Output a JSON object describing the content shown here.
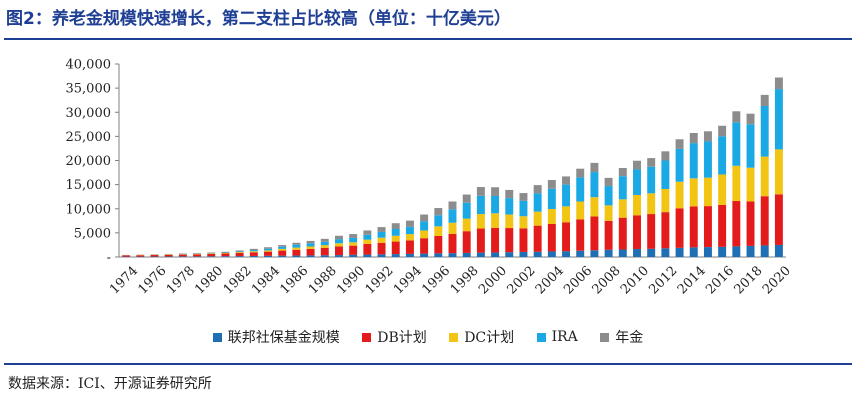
{
  "title": "图2：养老金规模快速增长，第二支柱占比较高（单位：十亿美元）",
  "source": "数据来源：ICI、开源证券研究所",
  "legend": [
    {
      "name": "联邦社保基金规模",
      "color": "#1f6fb4"
    },
    {
      "name": "DB计划",
      "color": "#e41b1b"
    },
    {
      "name": "DC计划",
      "color": "#f2c514"
    },
    {
      "name": "IRA",
      "color": "#1ba9e6"
    },
    {
      "name": "年金",
      "color": "#8c8c8c"
    }
  ],
  "chart_data": {
    "type": "bar",
    "stacked": true,
    "title": "",
    "xlabel": "",
    "ylabel": "",
    "ylim": [
      0,
      40000
    ],
    "yticks": [
      0,
      5000,
      10000,
      15000,
      20000,
      25000,
      30000,
      35000,
      40000
    ],
    "ytick_labels": [
      "-",
      "5,000",
      "10,000",
      "15,000",
      "20,000",
      "25,000",
      "30,000",
      "35,000",
      "40,000"
    ],
    "categories": [
      "1974",
      "1975",
      "1976",
      "1977",
      "1978",
      "1979",
      "1980",
      "1981",
      "1982",
      "1983",
      "1984",
      "1985",
      "1986",
      "1987",
      "1988",
      "1989",
      "1990",
      "1991",
      "1992",
      "1993",
      "1994",
      "1995",
      "1996",
      "1997",
      "1998",
      "1999",
      "2000",
      "2001",
      "2002",
      "2003",
      "2004",
      "2005",
      "2006",
      "2007",
      "2008",
      "2009",
      "2010",
      "2011",
      "2012",
      "2013",
      "2014",
      "2015",
      "2016",
      "2017",
      "2018",
      "2019",
      "2020"
    ],
    "xtick_labels": [
      "1974",
      "1976",
      "1978",
      "1980",
      "1982",
      "1984",
      "1986",
      "1988",
      "1990",
      "1992",
      "1994",
      "1996",
      "1998",
      "2000",
      "2002",
      "2004",
      "2006",
      "2008",
      "2010",
      "2012",
      "2014",
      "2016",
      "2018",
      "2020"
    ],
    "series": [
      {
        "name": "联邦社保基金规模",
        "values": [
          80,
          90,
          100,
          110,
          120,
          130,
          150,
          170,
          190,
          220,
          250,
          280,
          300,
          330,
          360,
          400,
          450,
          500,
          550,
          600,
          640,
          700,
          750,
          800,
          850,
          900,
          950,
          1000,
          1050,
          1100,
          1150,
          1200,
          1300,
          1400,
          1500,
          1550,
          1650,
          1700,
          1800,
          1900,
          2000,
          2050,
          2100,
          2200,
          2300,
          2400,
          2500
        ]
      },
      {
        "name": "DB计划",
        "values": [
          250,
          280,
          310,
          340,
          380,
          420,
          500,
          550,
          640,
          750,
          860,
          1050,
          1200,
          1350,
          1550,
          1800,
          1900,
          2200,
          2400,
          2600,
          2800,
          3200,
          3600,
          4000,
          4500,
          5000,
          5100,
          5000,
          4900,
          5400,
          5700,
          6000,
          6500,
          7000,
          6000,
          6600,
          7000,
          7200,
          7500,
          8200,
          8500,
          8500,
          8700,
          9400,
          9200,
          10200,
          10500
        ]
      },
      {
        "name": "DC计划",
        "values": [
          40,
          50,
          60,
          70,
          80,
          90,
          110,
          130,
          180,
          220,
          260,
          350,
          450,
          500,
          550,
          650,
          700,
          900,
          1050,
          1200,
          1300,
          1600,
          2000,
          2300,
          2600,
          3000,
          3000,
          2800,
          2500,
          2900,
          3100,
          3300,
          3700,
          4000,
          3200,
          3800,
          4200,
          4300,
          4800,
          5500,
          5800,
          5900,
          6300,
          7300,
          7000,
          8200,
          9300
        ]
      },
      {
        "name": "IRA",
        "values": [
          10,
          15,
          20,
          30,
          40,
          50,
          60,
          80,
          150,
          250,
          350,
          450,
          600,
          650,
          700,
          850,
          900,
          1000,
          1200,
          1400,
          1500,
          1900,
          2300,
          2800,
          3300,
          3800,
          3600,
          3400,
          3200,
          3800,
          4200,
          4500,
          5000,
          5200,
          4000,
          4800,
          5300,
          5500,
          5900,
          6800,
          7300,
          7500,
          7900,
          9000,
          9000,
          10500,
          12500
        ]
      },
      {
        "name": "年金",
        "values": [
          50,
          60,
          70,
          80,
          100,
          110,
          120,
          150,
          200,
          250,
          300,
          350,
          400,
          500,
          600,
          700,
          800,
          900,
          1000,
          1200,
          1300,
          1400,
          1500,
          1600,
          1700,
          1800,
          1800,
          1700,
          1600,
          1700,
          1800,
          1700,
          1800,
          1900,
          1700,
          1700,
          1800,
          1800,
          1900,
          2000,
          2100,
          2100,
          2200,
          2300,
          2200,
          2300,
          2400
        ]
      }
    ]
  }
}
